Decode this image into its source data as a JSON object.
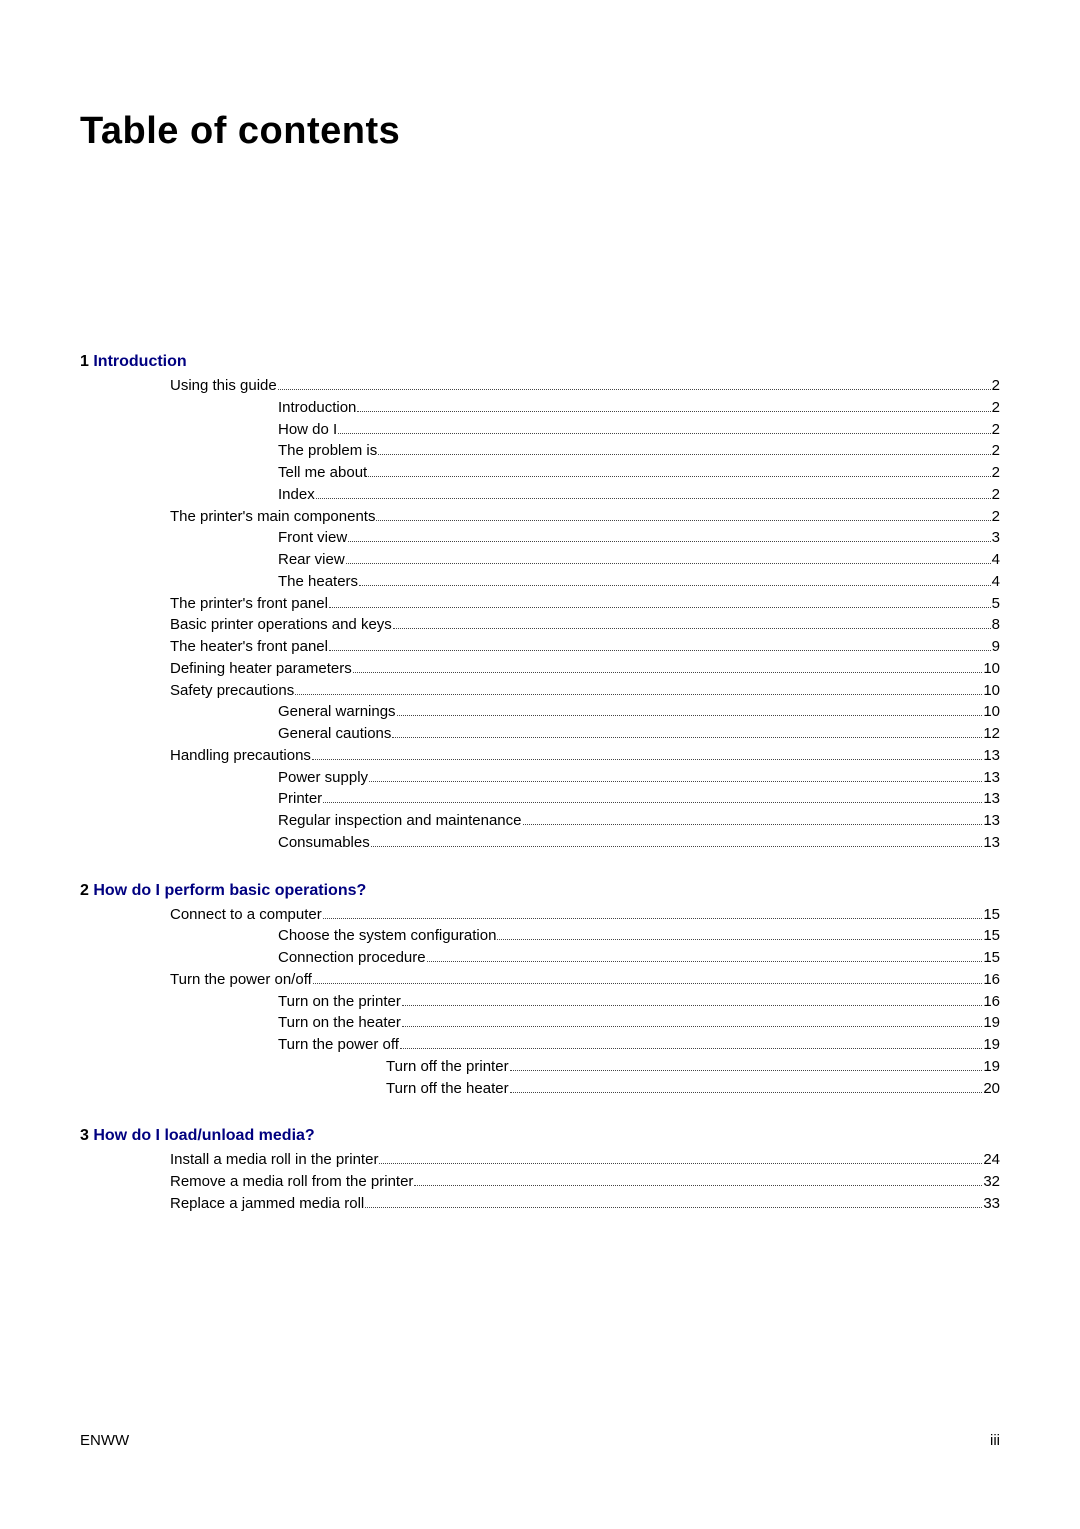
{
  "title": "Table of contents",
  "footer_left": "ENWW",
  "footer_right": "iii",
  "colors": {
    "text": "#000000",
    "link_heading": "#000080",
    "background": "#ffffff",
    "leader": "#444444"
  },
  "typography": {
    "title_fontsize": 38,
    "title_weight": "bold",
    "heading_fontsize": 16,
    "heading_weight": "bold",
    "body_fontsize": 15,
    "font_family": "Arial, Helvetica, sans-serif"
  },
  "sections": [
    {
      "heading_prefix": "1  ",
      "heading": "Introduction",
      "entries": [
        {
          "label": "Using this guide",
          "page": "2",
          "indent": 1
        },
        {
          "label": "Introduction",
          "page": "2",
          "indent": 2
        },
        {
          "label": "How do I ",
          "page": "2",
          "indent": 2
        },
        {
          "label": "The problem is ",
          "page": "2",
          "indent": 2
        },
        {
          "label": "Tell me about ",
          "page": "2",
          "indent": 2
        },
        {
          "label": "Index",
          "page": "2",
          "indent": 2
        },
        {
          "label": "The printer's main components",
          "page": "2",
          "indent": 1
        },
        {
          "label": "Front view",
          "page": "3",
          "indent": 2
        },
        {
          "label": "Rear view",
          "page": "4",
          "indent": 2
        },
        {
          "label": "The heaters",
          "page": "4",
          "indent": 2
        },
        {
          "label": "The printer's front panel",
          "page": "5",
          "indent": 1
        },
        {
          "label": "Basic printer operations and keys",
          "page": "8",
          "indent": 1
        },
        {
          "label": "The heater's front panel",
          "page": "9",
          "indent": 1
        },
        {
          "label": "Defining heater parameters",
          "page": "10",
          "indent": 1
        },
        {
          "label": "Safety precautions",
          "page": "10",
          "indent": 1
        },
        {
          "label": "General warnings",
          "page": "10",
          "indent": 2
        },
        {
          "label": "General cautions",
          "page": "12",
          "indent": 2
        },
        {
          "label": "Handling precautions",
          "page": "13",
          "indent": 1
        },
        {
          "label": "Power supply",
          "page": "13",
          "indent": 2
        },
        {
          "label": "Printer",
          "page": "13",
          "indent": 2
        },
        {
          "label": "Regular inspection and maintenance",
          "page": "13",
          "indent": 2
        },
        {
          "label": "Consumables",
          "page": "13",
          "indent": 2
        }
      ]
    },
    {
      "heading_prefix": "2  ",
      "heading": "How do I perform basic operations?",
      "entries": [
        {
          "label": "Connect to a computer",
          "page": "15",
          "indent": 1
        },
        {
          "label": "Choose the system configuration",
          "page": "15",
          "indent": 2
        },
        {
          "label": "Connection procedure",
          "page": "15",
          "indent": 2
        },
        {
          "label": "Turn the power on/off",
          "page": "16",
          "indent": 1
        },
        {
          "label": "Turn on the printer",
          "page": "16",
          "indent": 2
        },
        {
          "label": "Turn on the heater",
          "page": "19",
          "indent": 2
        },
        {
          "label": "Turn the power off",
          "page": "19",
          "indent": 2
        },
        {
          "label": "Turn off the printer",
          "page": "19",
          "indent": 3
        },
        {
          "label": "Turn off the heater",
          "page": "20",
          "indent": 3
        }
      ]
    },
    {
      "heading_prefix": "3  ",
      "heading": "How do I load/unload media?",
      "entries": [
        {
          "label": "Install a media roll in the printer",
          "page": "24",
          "indent": 1
        },
        {
          "label": "Remove a media roll from the printer",
          "page": "32",
          "indent": 1
        },
        {
          "label": "Replace a jammed media roll",
          "page": "33",
          "indent": 1
        }
      ]
    }
  ]
}
